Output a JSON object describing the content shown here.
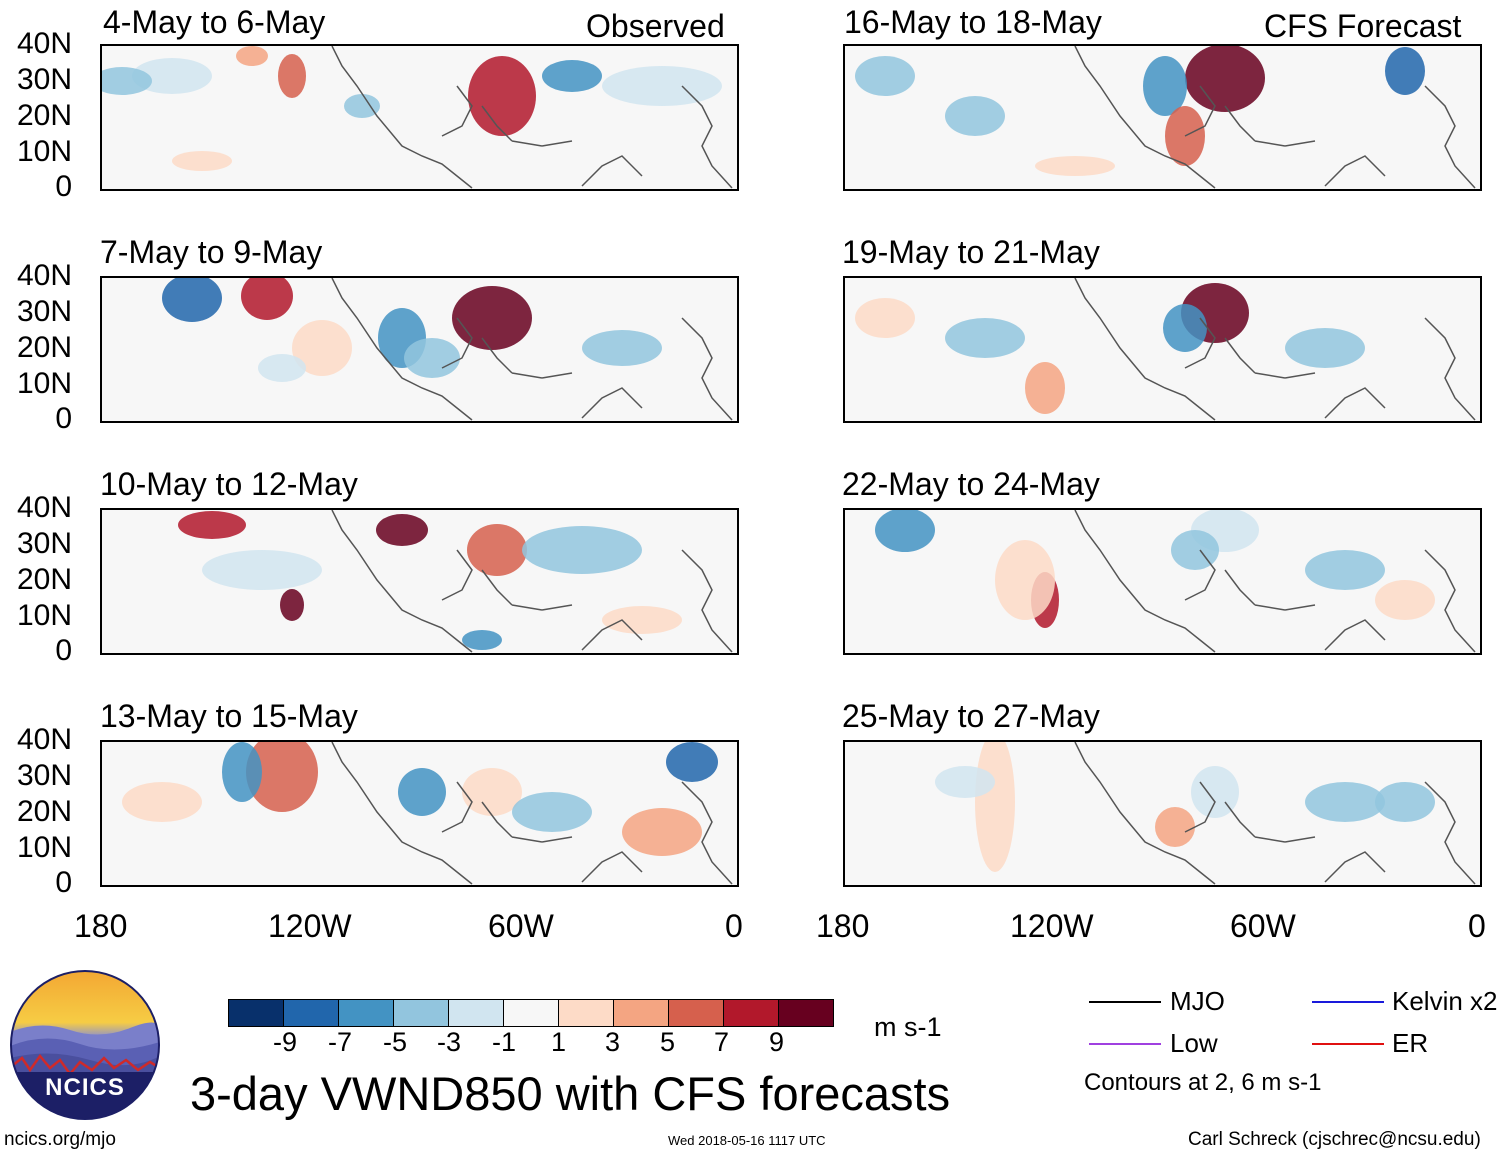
{
  "panels": {
    "left": [
      {
        "title": "4-May to 6-May"
      },
      {
        "title": "7-May to 9-May"
      },
      {
        "title": "10-May to 12-May"
      },
      {
        "title": "13-May to 15-May"
      }
    ],
    "right": [
      {
        "title": "16-May to 18-May"
      },
      {
        "title": "19-May to 21-May"
      },
      {
        "title": "22-May to 24-May"
      },
      {
        "title": "25-May to 27-May"
      }
    ],
    "observed_label": "Observed",
    "forecast_label": "CFS Forecast"
  },
  "lat_labels": [
    "40N",
    "30N",
    "20N",
    "10N",
    "0"
  ],
  "lon_labels": [
    "180",
    "120W",
    "60W",
    "0"
  ],
  "colorbar": {
    "colors": [
      "#08306b",
      "#2166ac",
      "#4393c3",
      "#92c5de",
      "#d1e5f0",
      "#f7f7f7",
      "#fddbc7",
      "#f4a582",
      "#d6604d",
      "#b2182b",
      "#67001f"
    ],
    "ticks": [
      "-9",
      "-7",
      "-5",
      "-3",
      "-1",
      "1",
      "3",
      "5",
      "7",
      "9"
    ],
    "units": "m s-1"
  },
  "legend": {
    "items": [
      {
        "label": "MJO",
        "color": "#000000"
      },
      {
        "label": "Kelvin x2",
        "color": "#1a1adb"
      },
      {
        "label": "Low",
        "color": "#a040e0"
      },
      {
        "label": "ER",
        "color": "#e01010"
      }
    ],
    "note": "Contours at 2, 6 m s-1"
  },
  "main_title": "3-day VWND850 with CFS forecasts",
  "logo_text": "NCICS",
  "footer": {
    "url": "ncics.org/mjo",
    "timestamp": "Wed 2018-05-16 1117 UTC",
    "credit": "Carl Schreck (cjschrec@ncsu.edu)"
  }
}
